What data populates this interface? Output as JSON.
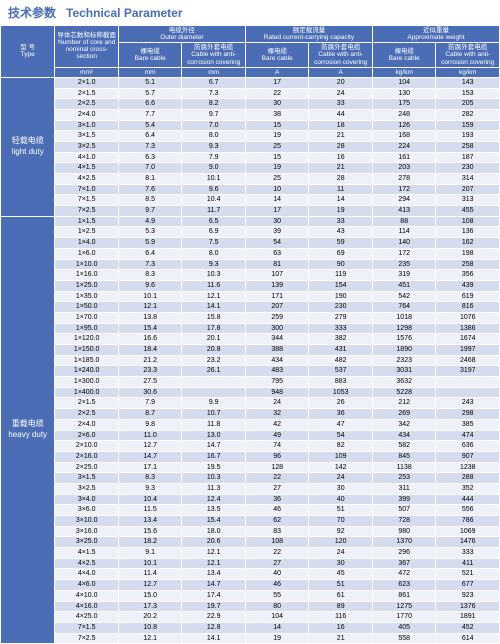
{
  "title": {
    "cn": "技术参数",
    "en": "Technical Parameter"
  },
  "headers": {
    "type": {
      "cn": "型 号",
      "en": "Type"
    },
    "cross": {
      "cn": "导体芯数和标称截面",
      "en": "Number of core and nominal cross-section",
      "unit": "mm²"
    },
    "outer": {
      "cn": "电缆外径",
      "en": "Outer diameter"
    },
    "rated": {
      "cn": "额定载流量",
      "en": "Rated current-carrying capacity"
    },
    "weight": {
      "cn": "近似重量",
      "en": "Approximate weight"
    },
    "bare": {
      "cn": "裸电缆",
      "en": "Bare cable"
    },
    "anti": {
      "cn": "防腐外套电缆",
      "en": "Cable with anti-corrosion covering"
    },
    "mm": "mm",
    "a": "A",
    "kg": "kg/km"
  },
  "groups": [
    {
      "cn": "轻载电缆",
      "en": "light duty",
      "rows": [
        [
          "2×1.0",
          "5.1",
          "6.7",
          "17",
          "20",
          "104",
          "143"
        ],
        [
          "2×1.5",
          "5.7",
          "7.3",
          "22",
          "24",
          "130",
          "153"
        ],
        [
          "2×2.5",
          "6.6",
          "8.2",
          "30",
          "33",
          "175",
          "205"
        ],
        [
          "2×4.0",
          "7.7",
          "9.7",
          "38",
          "44",
          "248",
          "282"
        ],
        [
          "3×1.0",
          "5.4",
          "7.0",
          "15",
          "18",
          "126",
          "159"
        ],
        [
          "3×1.5",
          "6.4",
          "8.0",
          "19",
          "21",
          "168",
          "193"
        ],
        [
          "3×2.5",
          "7.3",
          "9.3",
          "25",
          "28",
          "224",
          "258"
        ],
        [
          "4×1.0",
          "6.3",
          "7.9",
          "15",
          "16",
          "161",
          "187"
        ],
        [
          "4×1.5",
          "7.0",
          "9.0",
          "19",
          "21",
          "203",
          "230"
        ],
        [
          "4×2.5",
          "8.1",
          "10.1",
          "25",
          "28",
          "278",
          "314"
        ],
        [
          "7×1.0",
          "7.6",
          "9.6",
          "10",
          "11",
          "172",
          "207"
        ],
        [
          "7×1.5",
          "8.5",
          "10.4",
          "14",
          "14",
          "294",
          "313"
        ],
        [
          "7×2.5",
          "9.7",
          "11.7",
          "17",
          "19",
          "413",
          "455"
        ]
      ]
    },
    {
      "cn": "重载电缆",
      "en": "heavy duty",
      "rows": [
        [
          "1×1.5",
          "4.9",
          "6.5",
          "30",
          "33",
          "88",
          "108"
        ],
        [
          "1×2.5",
          "5.3",
          "6.9",
          "39",
          "43",
          "114",
          "136"
        ],
        [
          "1×4.0",
          "5.9",
          "7.5",
          "54",
          "59",
          "140",
          "162"
        ],
        [
          "1×6.0",
          "6.4",
          "8.0",
          "63",
          "69",
          "172",
          "198"
        ],
        [
          "1×10.0",
          "7.3",
          "9.3",
          "81",
          "90",
          "235",
          "258"
        ],
        [
          "1×16.0",
          "8.3",
          "10.3",
          "107",
          "119",
          "319",
          "356"
        ],
        [
          "1×25.0",
          "9.6",
          "11.6",
          "139",
          "154",
          "451",
          "439"
        ],
        [
          "1×35.0",
          "10.1",
          "12.1",
          "171",
          "190",
          "542",
          "619"
        ],
        [
          "1×50.0",
          "12.1",
          "14.1",
          "207",
          "230",
          "764",
          "816"
        ],
        [
          "1×70.0",
          "13.8",
          "15.8",
          "259",
          "279",
          "1018",
          "1076"
        ],
        [
          "1×95.0",
          "15.4",
          "17.8",
          "300",
          "333",
          "1298",
          "1386"
        ],
        [
          "1×120.0",
          "16.6",
          "20.1",
          "344",
          "382",
          "1576",
          "1674"
        ],
        [
          "1×150.0",
          "18.4",
          "20.8",
          "388",
          "431",
          "1890",
          "1997"
        ],
        [
          "1×185.0",
          "21.2",
          "23.2",
          "434",
          "482",
          "2323",
          "2468"
        ],
        [
          "1×240.0",
          "23.3",
          "26.1",
          "483",
          "537",
          "3031",
          "3197"
        ],
        [
          "1×300.0",
          "27.5",
          "",
          "795",
          "883",
          "3632",
          ""
        ],
        [
          "1×400.0",
          "30.6",
          "",
          "948",
          "1053",
          "5228",
          ""
        ],
        [
          "2×1.5",
          "7.9",
          "9.9",
          "24",
          "26",
          "212",
          "243"
        ],
        [
          "2×2.5",
          "8.7",
          "10.7",
          "32",
          "36",
          "269",
          "298"
        ],
        [
          "2×4.0",
          "9.8",
          "11.8",
          "42",
          "47",
          "342",
          "385"
        ],
        [
          "2×6.0",
          "11.0",
          "13.0",
          "49",
          "54",
          "434",
          "474"
        ],
        [
          "2×10.0",
          "12.7",
          "14.7",
          "74",
          "82",
          "582",
          "636"
        ],
        [
          "2×16.0",
          "14.7",
          "16.7",
          "96",
          "109",
          "845",
          "907"
        ],
        [
          "2×25.0",
          "17.1",
          "19.5",
          "128",
          "142",
          "1138",
          "1238"
        ],
        [
          "3×1.5",
          "8.3",
          "10.3",
          "22",
          "24",
          "253",
          "288"
        ],
        [
          "3×2.5",
          "9.3",
          "11.3",
          "27",
          "30",
          "311",
          "352"
        ],
        [
          "3×4.0",
          "10.4",
          "12.4",
          "36",
          "40",
          "399",
          "444"
        ],
        [
          "3×6.0",
          "11.5",
          "13.5",
          "46",
          "51",
          "507",
          "556"
        ],
        [
          "3×10.0",
          "13.4",
          "15.4",
          "62",
          "70",
          "728",
          "786"
        ],
        [
          "3×16.0",
          "15.6",
          "18.0",
          "83",
          "92",
          "980",
          "1069"
        ],
        [
          "3×25.0",
          "18.2",
          "20.6",
          "108",
          "120",
          "1370",
          "1476"
        ],
        [
          "4×1.5",
          "9.1",
          "12.1",
          "22",
          "24",
          "296",
          "333"
        ],
        [
          "4×2.5",
          "10.1",
          "12.1",
          "27",
          "30",
          "367",
          "411"
        ],
        [
          "4×4.0",
          "11.4",
          "13.4",
          "40",
          "45",
          "472",
          "521"
        ],
        [
          "4×6.0",
          "12.7",
          "14.7",
          "46",
          "51",
          "623",
          "677"
        ],
        [
          "4×10.0",
          "15.0",
          "17.4",
          "55",
          "61",
          "861",
          "923"
        ],
        [
          "4×16.0",
          "17.3",
          "19.7",
          "80",
          "89",
          "1275",
          "1376"
        ],
        [
          "4×25.0",
          "20.2",
          "22.9",
          "104",
          "116",
          "1770",
          "1891"
        ],
        [
          "7×1.5",
          "10.8",
          "12.8",
          "14",
          "16",
          "405",
          "452"
        ],
        [
          "7×2.5",
          "12.1",
          "14.1",
          "19",
          "21",
          "558",
          "614"
        ]
      ]
    }
  ],
  "colors": {
    "header": "#4a6db5",
    "row_even": "#d5dced",
    "row_odd": "#eef1f8"
  }
}
